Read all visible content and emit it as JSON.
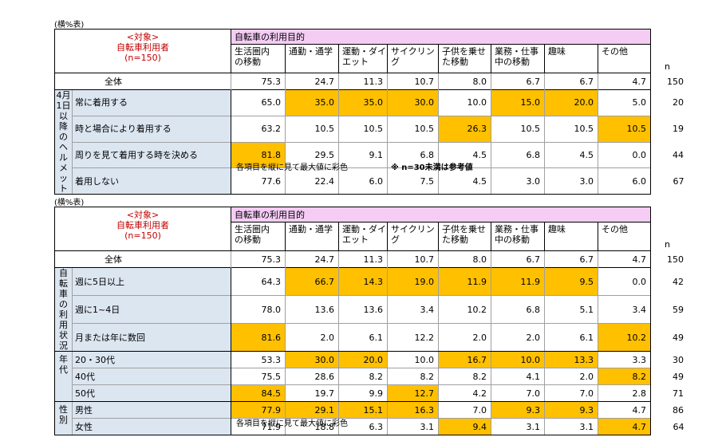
{
  "columns": [
    "生活圏内の移動",
    "通勤・通学",
    "運動・ダイエット",
    "サイクリング",
    "子供を乗せた移動",
    "業務・仕事中の移動",
    "趣味",
    "その他"
  ],
  "columns_display": [
    [
      "生活圏内",
      "の移動"
    ],
    [
      "通勤・通学"
    ],
    [
      "運動・ダイ",
      "エット"
    ],
    [
      "サイクリング"
    ],
    [
      "子供を乗せ",
      "た移動"
    ],
    [
      "業務・仕事",
      "中の移動"
    ],
    [
      "趣味"
    ],
    [
      "その他"
    ]
  ],
  "n_label": "n",
  "caption": "(横%表)",
  "corner": {
    "line1": "<対象>",
    "line2": "自転車利用者",
    "line3": "(n=150)"
  },
  "purpose_title": "自転車の利用目的",
  "footnote": "各項目を縦に見て最大値に彩色",
  "footnote_ref": "※ n=30未満は参考値",
  "ref_mark": "※",
  "colors": {
    "highlight": "#ffc000",
    "group_bg": "#dce6f1",
    "header_bg": "#f4ccf4",
    "corner_text": "#c00000"
  },
  "chart_data": [
    {
      "type": "table",
      "title": "",
      "total": {
        "label": "全体",
        "values": [
          "75.3",
          "24.7",
          "11.3",
          "10.7",
          "8.0",
          "6.7",
          "6.7",
          "4.7"
        ],
        "n": "150"
      },
      "groups": [
        {
          "label": "4月1日以降のヘルメット",
          "label_lines": [
            "4月1日",
            "以降の",
            "ヘルメット"
          ],
          "rows": [
            {
              "label": "常に着用する",
              "values": [
                "65.0",
                "35.0",
                "35.0",
                "30.0",
                "10.0",
                "15.0",
                "20.0",
                "5.0"
              ],
              "n": "20",
              "ref": true,
              "highlight": [
                1,
                2,
                3,
                5,
                6
              ]
            },
            {
              "label": "時と場合により着用する",
              "values": [
                "63.2",
                "10.5",
                "10.5",
                "10.5",
                "26.3",
                "10.5",
                "10.5",
                "10.5"
              ],
              "n": "19",
              "ref": true,
              "highlight": [
                4,
                7
              ]
            },
            {
              "label": "周りを見て着用する時を決める",
              "values": [
                "81.8",
                "29.5",
                "9.1",
                "6.8",
                "4.5",
                "6.8",
                "4.5",
                "0.0"
              ],
              "n": "44",
              "ref": false,
              "highlight": [
                0
              ]
            },
            {
              "label": "着用しない",
              "values": [
                "77.6",
                "22.4",
                "6.0",
                "7.5",
                "4.5",
                "3.0",
                "3.0",
                "6.0"
              ],
              "n": "67",
              "ref": false,
              "highlight": []
            }
          ]
        }
      ]
    },
    {
      "type": "table",
      "title": "",
      "total": {
        "label": "全体",
        "values": [
          "75.3",
          "24.7",
          "11.3",
          "10.7",
          "8.0",
          "6.7",
          "6.7",
          "4.7"
        ],
        "n": "150"
      },
      "groups": [
        {
          "label": "自転車の利用状況",
          "label_lines": [
            "自転車の",
            "利用状況"
          ],
          "rows": [
            {
              "label": "週に5日以上",
              "values": [
                "64.3",
                "66.7",
                "14.3",
                "19.0",
                "11.9",
                "11.9",
                "9.5",
                "0.0"
              ],
              "n": "42",
              "highlight": [
                1,
                2,
                3,
                4,
                5,
                6
              ]
            },
            {
              "label": "週に1~4日",
              "values": [
                "78.0",
                "13.6",
                "13.6",
                "3.4",
                "10.2",
                "6.8",
                "5.1",
                "3.4"
              ],
              "n": "59",
              "highlight": []
            },
            {
              "label": "月または年に数回",
              "values": [
                "81.6",
                "2.0",
                "6.1",
                "12.2",
                "2.0",
                "2.0",
                "6.1",
                "10.2"
              ],
              "n": "49",
              "highlight": [
                0,
                7
              ]
            }
          ]
        },
        {
          "label": "年代",
          "label_lines": [
            "年代"
          ],
          "rows": [
            {
              "label": "20・30代",
              "values": [
                "53.3",
                "30.0",
                "20.0",
                "10.0",
                "16.7",
                "10.0",
                "13.3",
                "3.3"
              ],
              "n": "30",
              "highlight": [
                1,
                2,
                4,
                5,
                6
              ]
            },
            {
              "label": "40代",
              "values": [
                "75.5",
                "28.6",
                "8.2",
                "8.2",
                "8.2",
                "4.1",
                "2.0",
                "8.2"
              ],
              "n": "49",
              "highlight": [
                7
              ]
            },
            {
              "label": "50代",
              "values": [
                "84.5",
                "19.7",
                "9.9",
                "12.7",
                "4.2",
                "7.0",
                "7.0",
                "2.8"
              ],
              "n": "71",
              "highlight": [
                0,
                3
              ]
            }
          ]
        },
        {
          "label": "性別",
          "label_lines": [
            "性別"
          ],
          "rows": [
            {
              "label": "男性",
              "values": [
                "77.9",
                "29.1",
                "15.1",
                "16.3",
                "7.0",
                "9.3",
                "9.3",
                "4.7"
              ],
              "n": "86",
              "highlight": [
                0,
                1,
                2,
                3,
                5,
                6
              ]
            },
            {
              "label": "女性",
              "values": [
                "71.9",
                "18.8",
                "6.3",
                "3.1",
                "9.4",
                "3.1",
                "3.1",
                "4.7"
              ],
              "n": "64",
              "highlight": [
                4,
                7
              ]
            }
          ]
        }
      ]
    }
  ]
}
